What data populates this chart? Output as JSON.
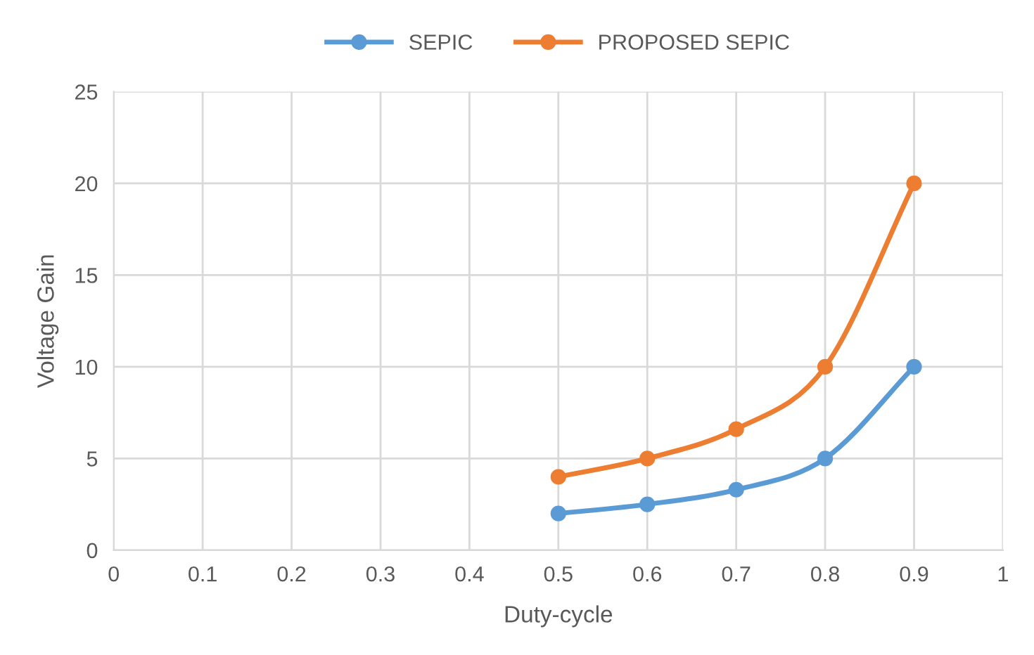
{
  "chart_data": {
    "type": "line",
    "xlabel": "Duty-cycle",
    "ylabel": "Voltage Gain",
    "x": [
      0.5,
      0.6,
      0.7,
      0.8,
      0.9
    ],
    "series": [
      {
        "name": "SEPIC",
        "color": "#5b9bd5",
        "values": [
          2,
          2.5,
          3.3,
          5,
          10
        ]
      },
      {
        "name": "PROPOSED SEPIC",
        "color": "#ed7d31",
        "values": [
          4,
          5,
          6.6,
          10,
          20
        ]
      }
    ],
    "xlim": [
      0,
      1
    ],
    "xticks": [
      0,
      0.1,
      0.2,
      0.3,
      0.4,
      0.5,
      0.6,
      0.7,
      0.8,
      0.9,
      1
    ],
    "ylim": [
      0,
      25
    ],
    "yticks": [
      0,
      5,
      10,
      15,
      20,
      25
    ],
    "grid": true,
    "legend": "top",
    "marker": "circle",
    "line_style": "solid"
  }
}
